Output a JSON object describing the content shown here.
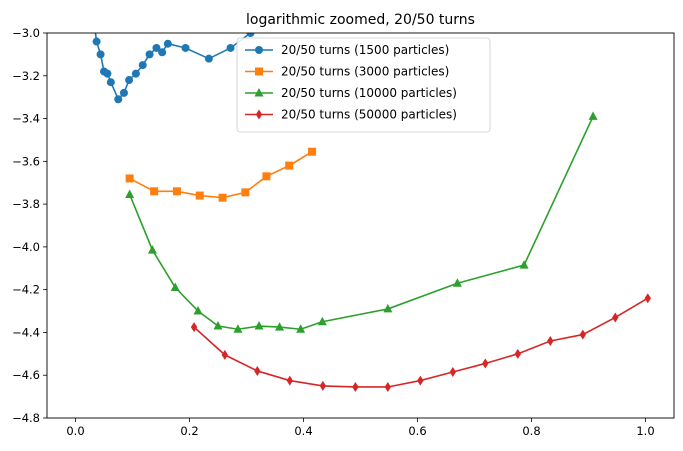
{
  "chart_data": {
    "type": "line",
    "title": "logarithmic zoomed, 20/50 turns",
    "xlabel": "",
    "ylabel": "",
    "xlim": [
      -0.05,
      1.05
    ],
    "ylim": [
      -4.8,
      -3.0
    ],
    "xticks": [
      0.0,
      0.2,
      0.4,
      0.6,
      0.8,
      1.0
    ],
    "xtick_labels": [
      "0.0",
      "0.2",
      "0.4",
      "0.6",
      "0.8",
      "1.0"
    ],
    "yticks": [
      -4.8,
      -4.6,
      -4.4,
      -4.2,
      -4.0,
      -3.8,
      -3.6,
      -3.4,
      -3.2,
      -3.0
    ],
    "ytick_labels": [
      "−4.8",
      "−4.6",
      "−4.4",
      "−4.2",
      "−4.0",
      "−3.8",
      "−3.6",
      "−3.4",
      "−3.2",
      "−3.0"
    ],
    "grid": false,
    "legend_position": "top-center",
    "series": [
      {
        "name": "20/50 turns (1500 particles)",
        "color": "#1f77b4",
        "marker": "circle",
        "x": [
          0.03,
          0.037,
          0.044,
          0.05,
          0.056,
          0.062,
          0.075,
          0.085,
          0.094,
          0.106,
          0.118,
          0.13,
          0.142,
          0.152,
          0.162,
          0.193,
          0.234,
          0.272,
          0.307,
          0.35
        ],
        "y": [
          -2.9,
          -3.04,
          -3.1,
          -3.18,
          -3.19,
          -3.23,
          -3.31,
          -3.28,
          -3.22,
          -3.19,
          -3.15,
          -3.1,
          -3.07,
          -3.09,
          -3.05,
          -3.07,
          -3.12,
          -3.07,
          -3.0,
          -2.9
        ]
      },
      {
        "name": "20/50 turns (3000 particles)",
        "color": "#ff7f0e",
        "marker": "square",
        "x": [
          0.095,
          0.138,
          0.178,
          0.218,
          0.258,
          0.298,
          0.335,
          0.375,
          0.415
        ],
        "y": [
          -3.68,
          -3.74,
          -3.74,
          -3.76,
          -3.77,
          -3.745,
          -3.67,
          -3.62,
          -3.555
        ]
      },
      {
        "name": "20/50 turns (10000 particles)",
        "color": "#2ca02c",
        "marker": "triangle",
        "x": [
          0.095,
          0.135,
          0.175,
          0.215,
          0.25,
          0.285,
          0.322,
          0.358,
          0.395,
          0.433,
          0.548,
          0.67,
          0.787,
          0.908
        ],
        "y": [
          -3.755,
          -4.015,
          -4.19,
          -4.3,
          -4.37,
          -4.385,
          -4.37,
          -4.375,
          -4.385,
          -4.35,
          -4.29,
          -4.17,
          -4.085,
          -3.39
        ]
      },
      {
        "name": "20/50 turns (50000 particles)",
        "color": "#d62728",
        "marker": "diamond",
        "x": [
          0.208,
          0.262,
          0.319,
          0.376,
          0.434,
          0.491,
          0.548,
          0.605,
          0.662,
          0.719,
          0.776,
          0.833,
          0.89,
          0.947,
          1.004
        ],
        "y": [
          -4.375,
          -4.505,
          -4.58,
          -4.625,
          -4.65,
          -4.655,
          -4.655,
          -4.625,
          -4.585,
          -4.545,
          -4.5,
          -4.44,
          -4.41,
          -4.33,
          -4.24
        ]
      }
    ]
  }
}
